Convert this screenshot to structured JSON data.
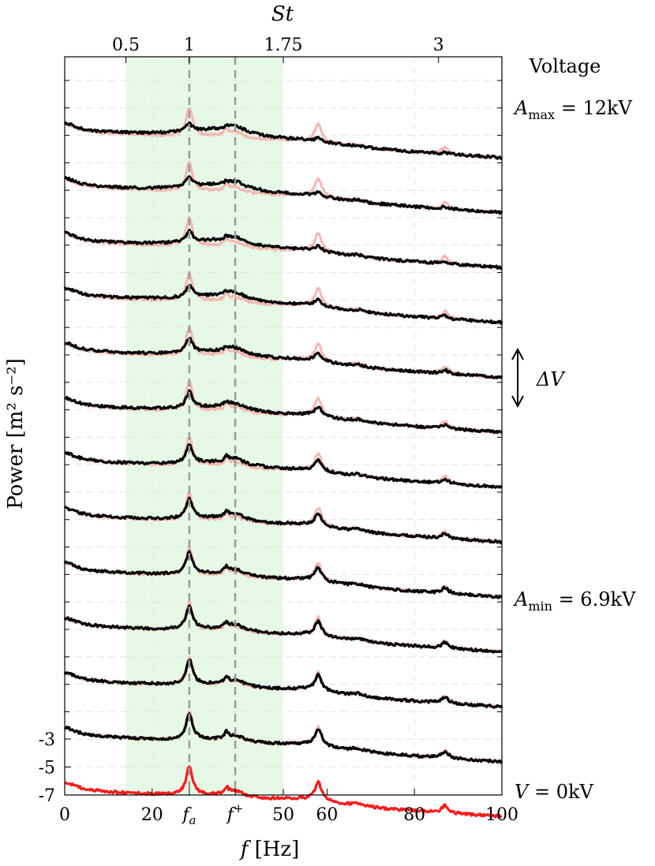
{
  "chart_data": {
    "type": "line",
    "title": "",
    "xlabel": "f [Hz]",
    "ylabel": "Power [m² s⁻²]",
    "xlim": [
      0,
      100
    ],
    "bottom_ylim": [
      -7,
      -2.5
    ],
    "x_ticks": [
      0,
      20,
      50,
      60,
      80,
      100
    ],
    "x_tick_labels": [
      "0",
      "20",
      "50",
      "60",
      "80",
      "100"
    ],
    "x_symbol_ticks": [
      {
        "x": 28.5,
        "label": "f",
        "sub": "a"
      },
      {
        "x": 39,
        "label": "f",
        "sup": "+"
      }
    ],
    "y_ticks": [
      -3,
      -5,
      -7
    ],
    "y_tick_labels": [
      "-3",
      "-5",
      "-7"
    ],
    "top_axis": {
      "label": "St",
      "ticks": [
        {
          "x": 14,
          "label": "0.5"
        },
        {
          "x": 28.5,
          "label": "1"
        },
        {
          "x": 50,
          "label": "1.75"
        },
        {
          "x": 85.5,
          "label": "3"
        }
      ]
    },
    "shaded_band": {
      "x_from": 14,
      "x_to": 50,
      "color": "#e6f9e6"
    },
    "reference_lines": [
      {
        "x": 28.5,
        "style": "dashed",
        "color": "#9a9a9a"
      },
      {
        "x": 39,
        "style": "dashed",
        "color": "#9a9a9a"
      }
    ],
    "peaks_hz": [
      28.5,
      37,
      39,
      58,
      67,
      87
    ],
    "series": [
      {
        "name": "V = 0kV",
        "color": "#ff1a1a",
        "offset": 0
      },
      {
        "color": "#000000",
        "offset": 1
      },
      {
        "color": "#000000",
        "offset": 2
      },
      {
        "color": "#000000",
        "offset": 3
      },
      {
        "color": "#000000",
        "offset": 4
      },
      {
        "color": "#000000",
        "offset": 5
      },
      {
        "color": "#000000",
        "offset": 6
      },
      {
        "color": "#000000",
        "offset": 7
      },
      {
        "color": "#000000",
        "offset": 8
      },
      {
        "color": "#000000",
        "offset": 9
      },
      {
        "color": "#000000",
        "offset": 10
      },
      {
        "color": "#000000",
        "offset": 11
      },
      {
        "color": "#000000",
        "offset": 12
      }
    ],
    "reference_series_color": "#f6b7b3",
    "right_annotations": {
      "heading": "Voltage",
      "top": {
        "sym": "A",
        "sub": "max",
        "rest": " = 12kV"
      },
      "delta": "ΔV",
      "mid": {
        "sym": "A",
        "sub": "min",
        "rest": " = 6.9kV"
      },
      "bottom": {
        "sym": "V",
        "rest": " = 0kV"
      }
    },
    "grid": "dashed-horizontal"
  }
}
